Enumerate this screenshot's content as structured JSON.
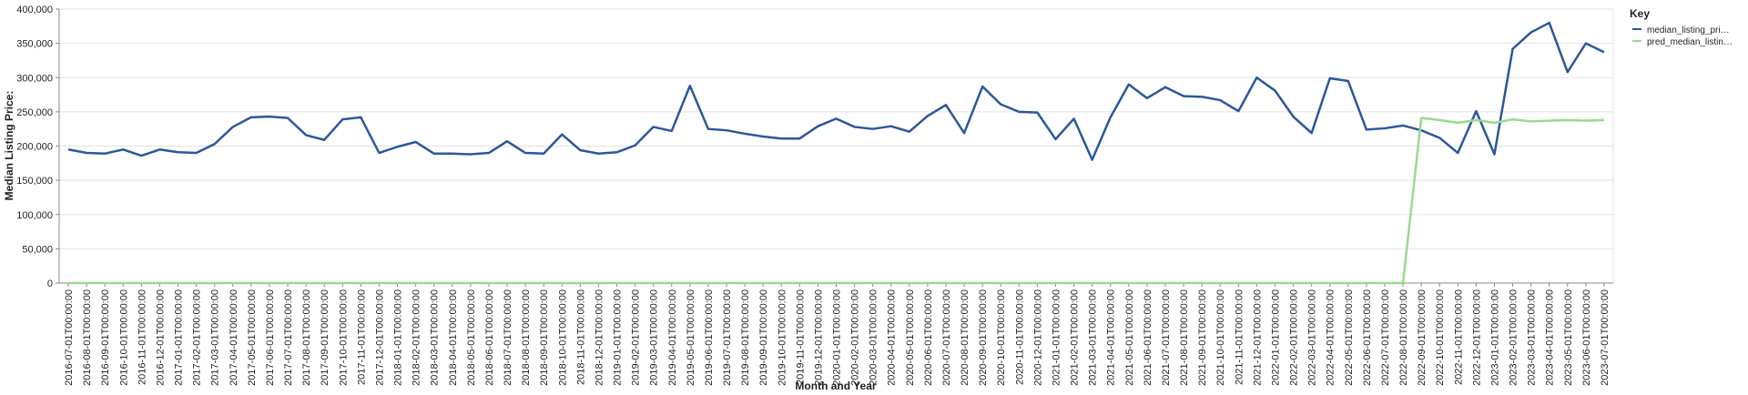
{
  "chart_data": {
    "type": "line",
    "x_label": "Month and Year",
    "y_label": "Median Listing Price:",
    "legend_title": "Key",
    "legend": "right",
    "grid": true,
    "categories": [
      "2016-07-01T00:00:00",
      "2016-08-01T00:00:00",
      "2016-09-01T00:00:00",
      "2016-10-01T00:00:00",
      "2016-11-01T00:00:00",
      "2016-12-01T00:00:00",
      "2017-01-01T00:00:00",
      "2017-02-01T00:00:00",
      "2017-03-01T00:00:00",
      "2017-04-01T00:00:00",
      "2017-05-01T00:00:00",
      "2017-06-01T00:00:00",
      "2017-07-01T00:00:00",
      "2017-08-01T00:00:00",
      "2017-09-01T00:00:00",
      "2017-10-01T00:00:00",
      "2017-11-01T00:00:00",
      "2017-12-01T00:00:00",
      "2018-01-01T00:00:00",
      "2018-02-01T00:00:00",
      "2018-03-01T00:00:00",
      "2018-04-01T00:00:00",
      "2018-05-01T00:00:00",
      "2018-06-01T00:00:00",
      "2018-07-01T00:00:00",
      "2018-08-01T00:00:00",
      "2018-09-01T00:00:00",
      "2018-10-01T00:00:00",
      "2018-11-01T00:00:00",
      "2018-12-01T00:00:00",
      "2019-01-01T00:00:00",
      "2019-02-01T00:00:00",
      "2019-03-01T00:00:00",
      "2019-04-01T00:00:00",
      "2019-05-01T00:00:00",
      "2019-06-01T00:00:00",
      "2019-07-01T00:00:00",
      "2019-08-01T00:00:00",
      "2019-09-01T00:00:00",
      "2019-10-01T00:00:00",
      "2019-11-01T00:00:00",
      "2019-12-01T00:00:00",
      "2020-01-01T00:00:00",
      "2020-02-01T00:00:00",
      "2020-03-01T00:00:00",
      "2020-04-01T00:00:00",
      "2020-05-01T00:00:00",
      "2020-06-01T00:00:00",
      "2020-07-01T00:00:00",
      "2020-08-01T00:00:00",
      "2020-09-01T00:00:00",
      "2020-10-01T00:00:00",
      "2020-11-01T00:00:00",
      "2020-12-01T00:00:00",
      "2021-01-01T00:00:00",
      "2021-02-01T00:00:00",
      "2021-03-01T00:00:00",
      "2021-04-01T00:00:00",
      "2021-05-01T00:00:00",
      "2021-06-01T00:00:00",
      "2021-07-01T00:00:00",
      "2021-08-01T00:00:00",
      "2021-09-01T00:00:00",
      "2021-10-01T00:00:00",
      "2021-11-01T00:00:00",
      "2021-12-01T00:00:00",
      "2022-01-01T00:00:00",
      "2022-02-01T00:00:00",
      "2022-03-01T00:00:00",
      "2022-04-01T00:00:00",
      "2022-05-01T00:00:00",
      "2022-06-01T00:00:00",
      "2022-07-01T00:00:00",
      "2022-08-01T00:00:00",
      "2022-09-01T00:00:00",
      "2022-10-01T00:00:00",
      "2022-11-01T00:00:00",
      "2022-12-01T00:00:00",
      "2023-01-01T00:00:00",
      "2023-02-01T00:00:00",
      "2023-03-01T00:00:00",
      "2023-04-01T00:00:00",
      "2023-05-01T00:00:00",
      "2023-06-01T00:00:00",
      "2023-07-01T00:00:00"
    ],
    "series": [
      {
        "name": "median_listing_pri…",
        "color": "#2b579c",
        "values": [
          195000,
          190000,
          189000,
          195000,
          186000,
          195000,
          191000,
          190000,
          203000,
          228000,
          242000,
          243000,
          241000,
          216000,
          209000,
          239000,
          242000,
          190000,
          199000,
          206000,
          189000,
          189000,
          188000,
          190000,
          207000,
          190000,
          189000,
          217000,
          194000,
          189000,
          191000,
          201000,
          228000,
          222000,
          288000,
          225000,
          223000,
          218000,
          214000,
          211000,
          211000,
          229000,
          240000,
          228000,
          225000,
          229000,
          221000,
          244000,
          260000,
          219000,
          287000,
          261000,
          250000,
          249000,
          210000,
          240000,
          180000,
          242000,
          290000,
          270000,
          286000,
          273000,
          272000,
          267000,
          251000,
          300000,
          281000,
          243000,
          219000,
          299000,
          295000,
          224000,
          226000,
          230000,
          223000,
          212000,
          190000,
          251000,
          188000,
          342000,
          366000,
          380000,
          308000,
          350000,
          337000
        ]
      },
      {
        "name": "pred_median_listin…",
        "color": "#9ad98f",
        "values": [
          0,
          0,
          0,
          0,
          0,
          0,
          0,
          0,
          0,
          0,
          0,
          0,
          0,
          0,
          0,
          0,
          0,
          0,
          0,
          0,
          0,
          0,
          0,
          0,
          0,
          0,
          0,
          0,
          0,
          0,
          0,
          0,
          0,
          0,
          0,
          0,
          0,
          0,
          0,
          0,
          0,
          0,
          0,
          0,
          0,
          0,
          0,
          0,
          0,
          0,
          0,
          0,
          0,
          0,
          0,
          0,
          0,
          0,
          0,
          0,
          0,
          0,
          0,
          0,
          0,
          0,
          0,
          0,
          0,
          0,
          0,
          0,
          0,
          0,
          241000,
          238000,
          234000,
          238000,
          234000,
          239000,
          236000,
          237000,
          238000,
          237000,
          238000
        ]
      }
    ],
    "ylim": [
      0,
      400000
    ],
    "yticks": [
      0,
      {
        "value": 50000,
        "label": "50,000"
      },
      {
        "value": 100000,
        "label": "100,000"
      },
      {
        "value": 150000,
        "label": "150,000"
      },
      {
        "value": 200000,
        "label": "200,000"
      },
      {
        "value": 250000,
        "label": "250,000"
      },
      {
        "value": 300000,
        "label": "300,000"
      },
      {
        "value": 350000,
        "label": "350,000"
      },
      {
        "value": 400000,
        "label": "400,000"
      }
    ]
  }
}
